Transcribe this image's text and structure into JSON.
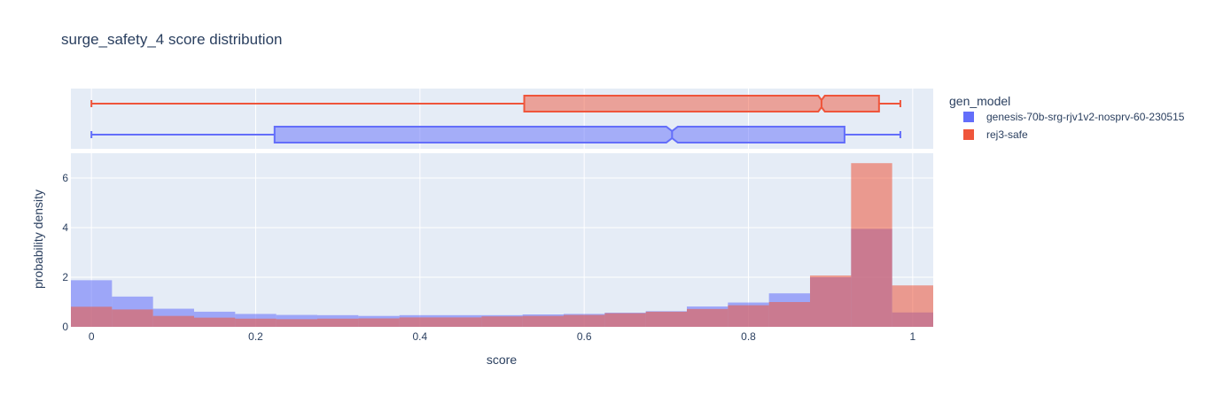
{
  "chart_data": {
    "type": "histogram",
    "title": "surge_safety_4 score distribution",
    "xlabel": "score",
    "ylabel": "probability density",
    "xlim": [
      -0.025,
      1.025
    ],
    "ylim": [
      0,
      7
    ],
    "x_ticks": [
      0,
      0.2,
      0.4,
      0.6,
      0.8,
      1
    ],
    "x_tick_labels": [
      "0",
      "0.2",
      "0.4",
      "0.6",
      "0.8",
      "1"
    ],
    "y_ticks": [
      0,
      2,
      4,
      6
    ],
    "y_tick_labels": [
      "0",
      "2",
      "4",
      "6"
    ],
    "bin_width": 0.05,
    "bin_centers": [
      0,
      0.05,
      0.1,
      0.15,
      0.2,
      0.25,
      0.3,
      0.35,
      0.4,
      0.45,
      0.5,
      0.55,
      0.6,
      0.65,
      0.7,
      0.75,
      0.8,
      0.85,
      0.9,
      0.95,
      1.0
    ],
    "legend_title": "gen_model",
    "legend_position": "right",
    "grid": true,
    "colors": {
      "plot_bg": "#E5ECF6",
      "grid": "#ffffff",
      "text": "#2a3f5f"
    },
    "series": [
      {
        "name": "genesis-70b-srg-rjv1v2-nosprv-60-230515",
        "color": "#636EFA",
        "values": [
          1.88,
          1.22,
          0.73,
          0.61,
          0.52,
          0.48,
          0.47,
          0.44,
          0.47,
          0.47,
          0.47,
          0.5,
          0.52,
          0.57,
          0.63,
          0.82,
          0.98,
          1.35,
          2.0,
          3.95,
          0.58
        ],
        "box": {
          "min": 0.0,
          "q1": 0.223,
          "median": 0.707,
          "q3": 0.917,
          "max": 0.985,
          "notch_low": 0.7,
          "notch_high": 0.714
        }
      },
      {
        "name": "rej3-safe",
        "color": "#EF553B",
        "values": [
          0.81,
          0.7,
          0.44,
          0.37,
          0.33,
          0.31,
          0.33,
          0.34,
          0.38,
          0.38,
          0.42,
          0.44,
          0.48,
          0.55,
          0.61,
          0.72,
          0.87,
          1.0,
          2.07,
          6.6,
          1.67
        ],
        "box": {
          "min": 0.0,
          "q1": 0.527,
          "median": 0.889,
          "q3": 0.959,
          "max": 0.985,
          "notch_low": 0.885,
          "notch_high": 0.893
        }
      }
    ]
  }
}
